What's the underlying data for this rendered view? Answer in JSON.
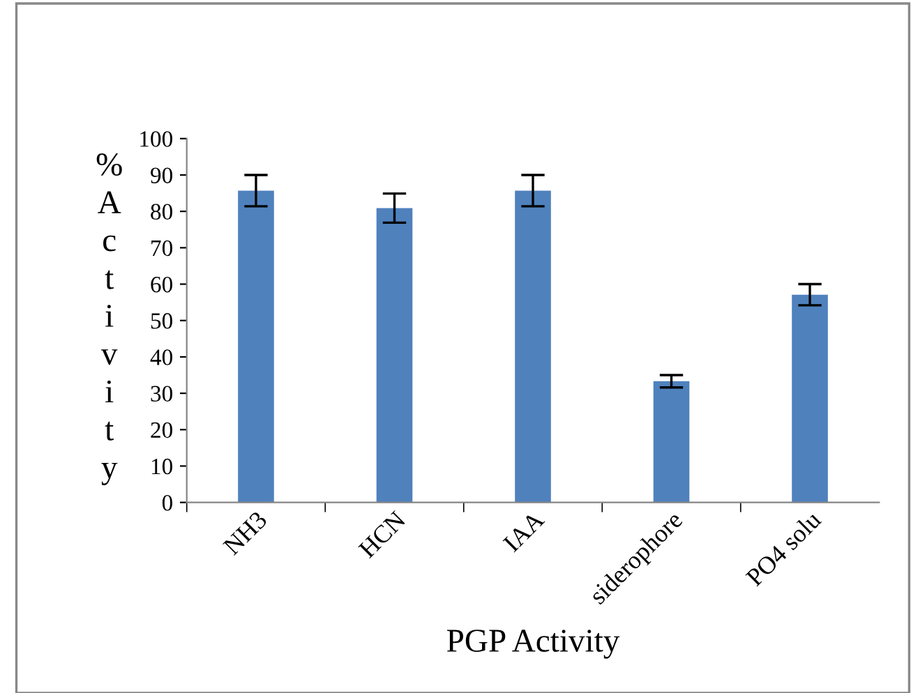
{
  "chart_data": {
    "type": "bar",
    "xlabel": "PGP Activity",
    "ylabel": "% Activity",
    "categories": [
      "NH3",
      "HCN",
      "IAA",
      "siderophore",
      "PO4 solu"
    ],
    "values": [
      85.7,
      80.9,
      85.7,
      33.3,
      57.1
    ],
    "errors": [
      4.3,
      4,
      4.3,
      1.7,
      2.9
    ],
    "color": "#4f81bd",
    "ylim": [
      0,
      100
    ],
    "yticks": [
      0,
      10,
      20,
      30,
      40,
      50,
      60,
      70,
      80,
      90,
      100
    ],
    "grid": false
  }
}
